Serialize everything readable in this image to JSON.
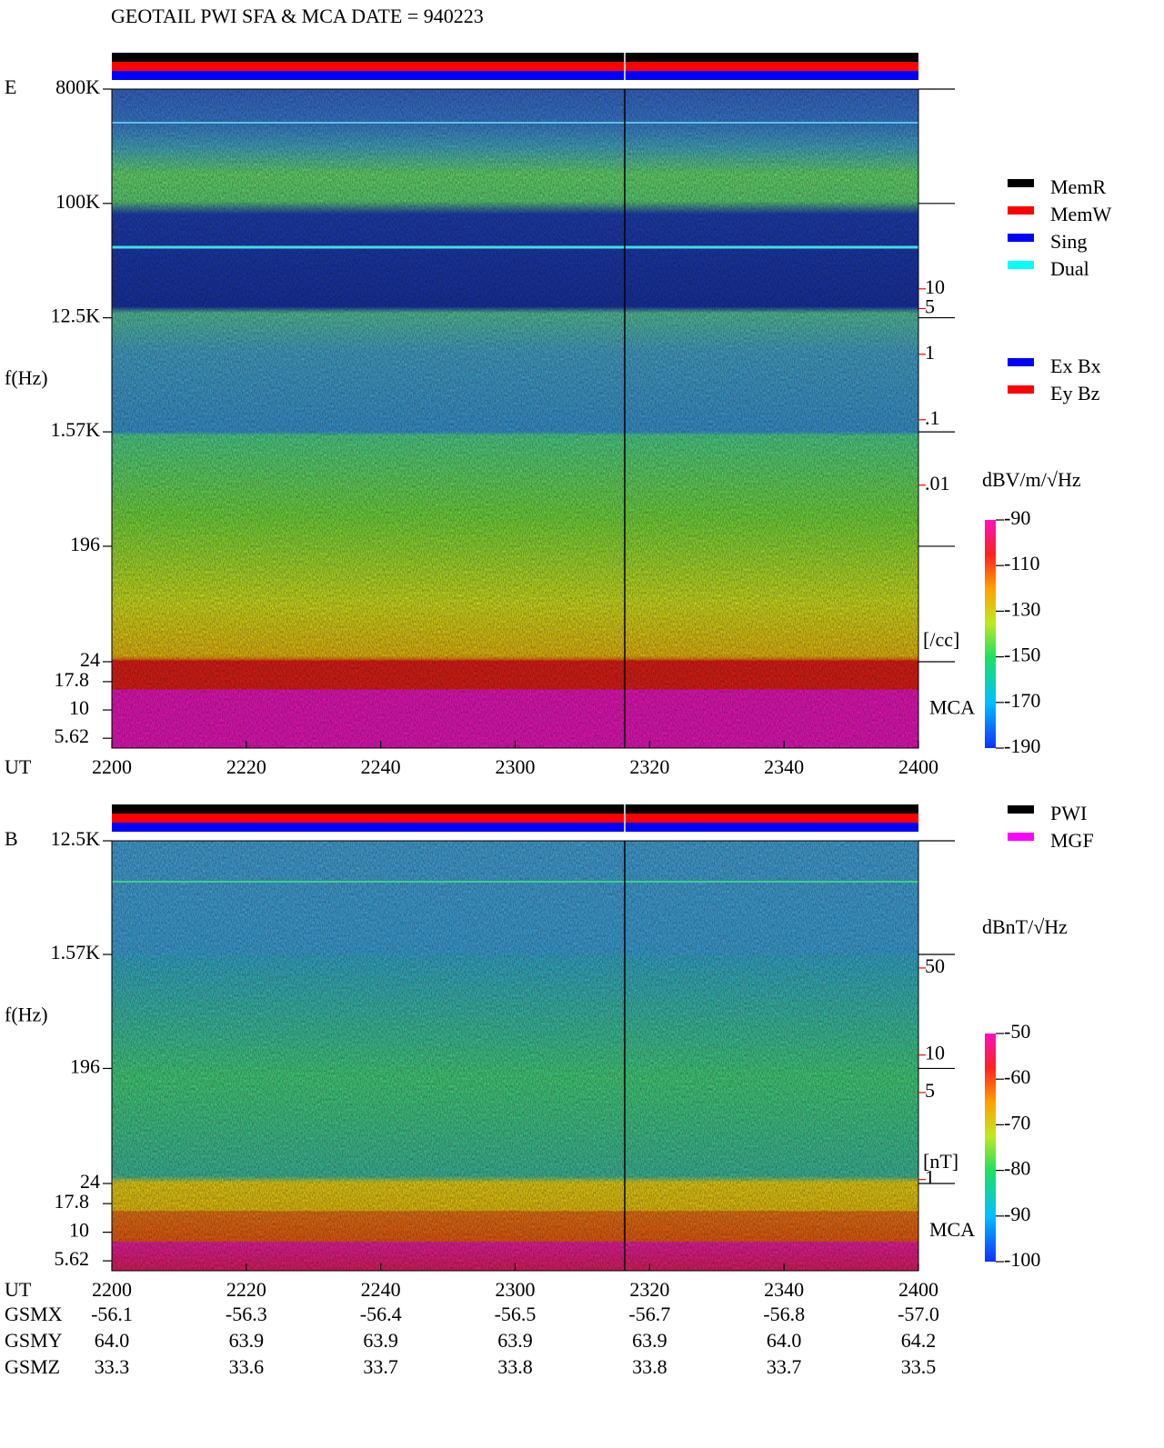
{
  "header": {
    "title": "GEOTAIL  PWI SFA & MCA   DATE = 940223"
  },
  "chart_data": [
    {
      "type": "spectrogram",
      "label": "E",
      "y_label": "f(Hz)",
      "x_label": "UT",
      "log_y": true,
      "ylim": [
        24,
        800000
      ],
      "yticks": [
        {
          "value": 800000,
          "label": "800K"
        },
        {
          "value": 100000,
          "label": "100K"
        },
        {
          "value": 12500,
          "label": "12.5K"
        },
        {
          "value": 1570,
          "label": "1.57K"
        },
        196,
        24
      ],
      "mca_label": "MCA",
      "mca_ylim": [
        4.6,
        26.7
      ],
      "mca_yticks": [
        17.8,
        10,
        5.62
      ],
      "xlim": [
        0,
        120
      ],
      "xticks": [
        {
          "value": 0,
          "label": "2200"
        },
        {
          "value": 20,
          "label": "2220"
        },
        {
          "value": 40,
          "label": "2240"
        },
        {
          "value": 60,
          "label": "2300"
        },
        {
          "value": 80,
          "label": "2320"
        },
        {
          "value": 100,
          "label": "2340"
        },
        {
          "value": 120,
          "label": "2400"
        }
      ],
      "marker_x": 76.3,
      "right_axis": {
        "ylim": [
          2e-05,
          11300
        ],
        "ticks": [
          10,
          5,
          1,
          {
            "value": 0.1,
            "label": ".1"
          },
          {
            "value": 0.01,
            "label": ".01"
          }
        ],
        "unit": "[/cc]",
        "color": "#ff0000"
      },
      "colorbar": {
        "unit": "dBV/m/√Hz",
        "lim": [
          -190,
          -90
        ],
        "ticks": [
          -90,
          -110,
          -130,
          -150,
          -170,
          -190
        ]
      },
      "legends": [
        [
          {
            "name": "MemR",
            "color": "#000000"
          },
          {
            "name": "MemW",
            "color": "#ff0000"
          },
          {
            "name": "Sing",
            "color": "#0000ff"
          },
          {
            "name": "Dual",
            "color": "#00ffff"
          }
        ],
        [
          {
            "name": "Ex Bx",
            "color": "#0000ff"
          },
          {
            "name": "Ey Bz",
            "color": "#ff0000"
          }
        ]
      ]
    },
    {
      "type": "spectrogram",
      "label": "B",
      "y_label": "f(Hz)",
      "x_label": "UT",
      "log_y": true,
      "ylim": [
        24,
        12500
      ],
      "yticks": [
        {
          "value": 12500,
          "label": "12.5K"
        },
        {
          "value": 1570,
          "label": "1.57K"
        },
        196,
        24
      ],
      "mca_label": "MCA",
      "mca_ylim": [
        4.6,
        26.7
      ],
      "mca_yticks": [
        17.8,
        10,
        5.62
      ],
      "xlim": [
        0,
        120
      ],
      "xticks": [
        {
          "value": 0,
          "label": "2200"
        },
        {
          "value": 20,
          "label": "2220"
        },
        {
          "value": 40,
          "label": "2240"
        },
        {
          "value": 60,
          "label": "2300"
        },
        {
          "value": 80,
          "label": "2320"
        },
        {
          "value": 100,
          "label": "2340"
        },
        {
          "value": 120,
          "label": "2400"
        }
      ],
      "marker_x": 76.3,
      "right_axis": {
        "ylim": [
          0.93,
          525
        ],
        "ticks": [
          50,
          10,
          5,
          1
        ],
        "unit": "[nT]",
        "color": "#ff0000"
      },
      "colorbar": {
        "unit": "dBnT/√Hz",
        "lim": [
          -100,
          -50
        ],
        "ticks": [
          -50,
          -60,
          -70,
          -80,
          -90,
          -100
        ]
      },
      "legends": [
        [
          {
            "name": "PWI",
            "color": "#000000"
          },
          {
            "name": "MGF",
            "color": "#ff00ff"
          }
        ]
      ]
    }
  ],
  "orbit": {
    "rows": [
      {
        "name": "GSMX",
        "values": [
          -56.1,
          -56.3,
          -56.4,
          -56.5,
          -56.7,
          -56.8,
          -57.0
        ],
        "value_labels": [
          "-56.1",
          "-56.3",
          "-56.4",
          "-56.5",
          "-56.7",
          "-56.8",
          "-57.0"
        ]
      },
      {
        "name": "GSMY",
        "values": [
          64.0,
          63.9,
          63.9,
          63.9,
          63.9,
          64.0,
          64.2
        ],
        "value_labels": [
          "64.0",
          "63.9",
          "63.9",
          "63.9",
          "63.9",
          "64.0",
          "64.2"
        ]
      },
      {
        "name": "GSMZ",
        "values": [
          33.3,
          33.6,
          33.7,
          33.8,
          33.8,
          33.7,
          33.5
        ],
        "value_labels": [
          "33.3",
          "33.6",
          "33.7",
          "33.8",
          "33.8",
          "33.7",
          "33.5"
        ]
      }
    ]
  }
}
